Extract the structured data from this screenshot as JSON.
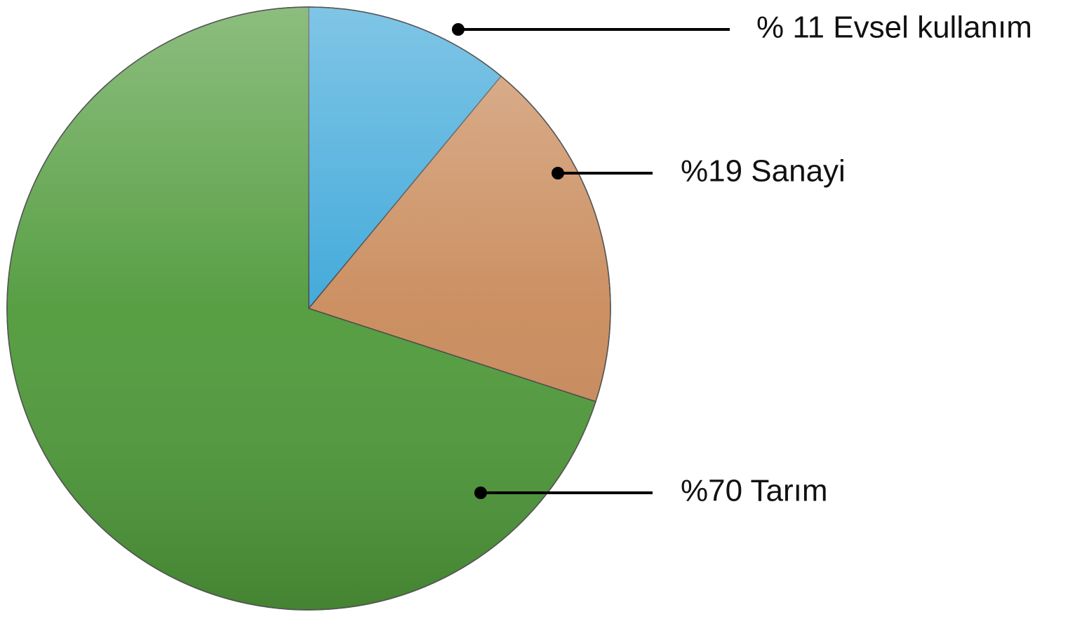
{
  "chart_data": {
    "type": "pie",
    "values": [
      11,
      19,
      70
    ],
    "value_labels": [
      "% 11 Evsel kullanım",
      "%19 Sanayi",
      "%70 Tarım"
    ],
    "colors": [
      "#3aa6d8",
      "#c98a5a",
      "#4f9a3a"
    ]
  }
}
